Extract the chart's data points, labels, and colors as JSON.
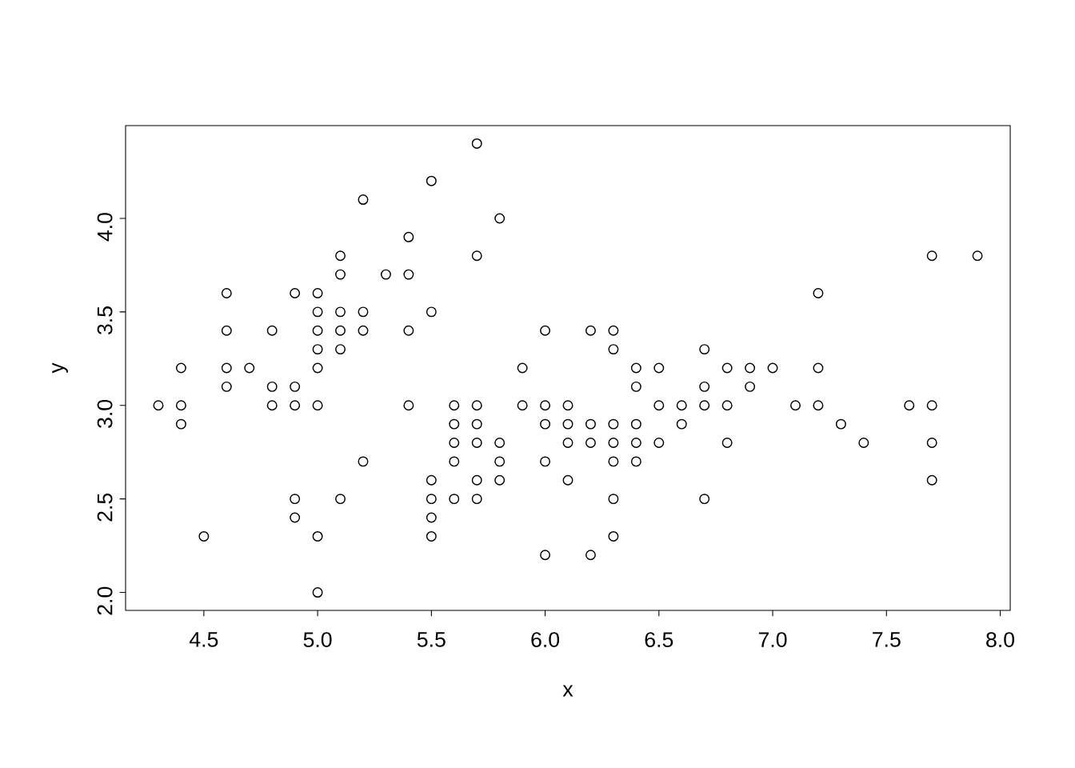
{
  "chart_data": {
    "type": "scatter",
    "xlabel": "x",
    "ylabel": "y",
    "marker": "circle",
    "color": "#000000",
    "x": [
      4.3,
      4.4,
      4.4,
      4.4,
      4.5,
      4.6,
      4.6,
      4.6,
      4.6,
      4.7,
      4.8,
      4.8,
      4.8,
      4.9,
      4.9,
      4.9,
      4.9,
      4.9,
      5.0,
      5.0,
      5.0,
      5.0,
      5.0,
      5.0,
      5.0,
      5.0,
      5.1,
      5.1,
      5.1,
      5.1,
      5.1,
      5.1,
      5.2,
      5.2,
      5.2,
      5.2,
      5.3,
      5.4,
      5.4,
      5.4,
      5.4,
      5.5,
      5.5,
      5.5,
      5.5,
      5.5,
      5.5,
      5.6,
      5.6,
      5.6,
      5.6,
      5.6,
      5.7,
      5.7,
      5.7,
      5.7,
      5.7,
      5.7,
      5.7,
      5.8,
      5.8,
      5.8,
      5.8,
      5.9,
      5.9,
      6.0,
      6.0,
      6.0,
      6.0,
      6.0,
      6.1,
      6.1,
      6.1,
      6.1,
      6.2,
      6.2,
      6.2,
      6.2,
      6.3,
      6.3,
      6.3,
      6.3,
      6.3,
      6.3,
      6.3,
      6.4,
      6.4,
      6.4,
      6.4,
      6.4,
      6.5,
      6.5,
      6.5,
      6.6,
      6.6,
      6.7,
      6.7,
      6.7,
      6.7,
      6.8,
      6.8,
      6.8,
      6.9,
      6.9,
      7.0,
      7.1,
      7.2,
      7.2,
      7.2,
      7.3,
      7.4,
      7.6,
      7.7,
      7.7,
      7.7,
      7.7,
      7.9
    ],
    "values": [
      3.0,
      3.2,
      3.0,
      2.9,
      2.3,
      3.6,
      3.4,
      3.2,
      3.1,
      3.2,
      3.4,
      3.1,
      3.0,
      3.6,
      3.1,
      3.0,
      2.5,
      2.4,
      3.6,
      3.5,
      3.4,
      3.3,
      3.2,
      3.0,
      2.3,
      2.0,
      3.8,
      3.7,
      3.5,
      3.4,
      3.3,
      2.5,
      4.1,
      3.5,
      3.4,
      2.7,
      3.7,
      3.9,
      3.7,
      3.4,
      3.0,
      4.2,
      3.5,
      2.6,
      2.5,
      2.4,
      2.3,
      3.0,
      2.9,
      2.8,
      2.7,
      2.5,
      4.4,
      3.8,
      3.0,
      2.9,
      2.8,
      2.6,
      2.5,
      4.0,
      2.8,
      2.7,
      2.6,
      3.2,
      3.0,
      3.4,
      3.0,
      2.9,
      2.7,
      2.2,
      3.0,
      2.9,
      2.8,
      2.6,
      3.4,
      2.9,
      2.8,
      2.2,
      3.4,
      3.3,
      2.9,
      2.8,
      2.7,
      2.5,
      2.3,
      3.2,
      3.1,
      2.9,
      2.8,
      2.7,
      3.2,
      3.0,
      2.8,
      3.0,
      2.9,
      3.3,
      3.1,
      3.0,
      2.5,
      3.2,
      3.0,
      2.8,
      3.2,
      3.1,
      3.2,
      3.0,
      3.6,
      3.2,
      3.0,
      2.9,
      2.8,
      3.0,
      3.8,
      3.0,
      2.8,
      2.6,
      3.8
    ],
    "xlim": [
      4.156,
      8.044
    ],
    "ylim": [
      1.904,
      4.496
    ],
    "xticks": [
      {
        "value": 4.5,
        "label": "4.5"
      },
      {
        "value": 5.0,
        "label": "5.0"
      },
      {
        "value": 5.5,
        "label": "5.5"
      },
      {
        "value": 6.0,
        "label": "6.0"
      },
      {
        "value": 6.5,
        "label": "6.5"
      },
      {
        "value": 7.0,
        "label": "7.0"
      },
      {
        "value": 7.5,
        "label": "7.5"
      },
      {
        "value": 8.0,
        "label": "8.0"
      }
    ],
    "yticks": [
      {
        "value": 2.0,
        "label": "2.0"
      },
      {
        "value": 2.5,
        "label": "2.5"
      },
      {
        "value": 3.0,
        "label": "3.0"
      },
      {
        "value": 3.5,
        "label": "3.5"
      },
      {
        "value": 4.0,
        "label": "4.0"
      }
    ]
  }
}
